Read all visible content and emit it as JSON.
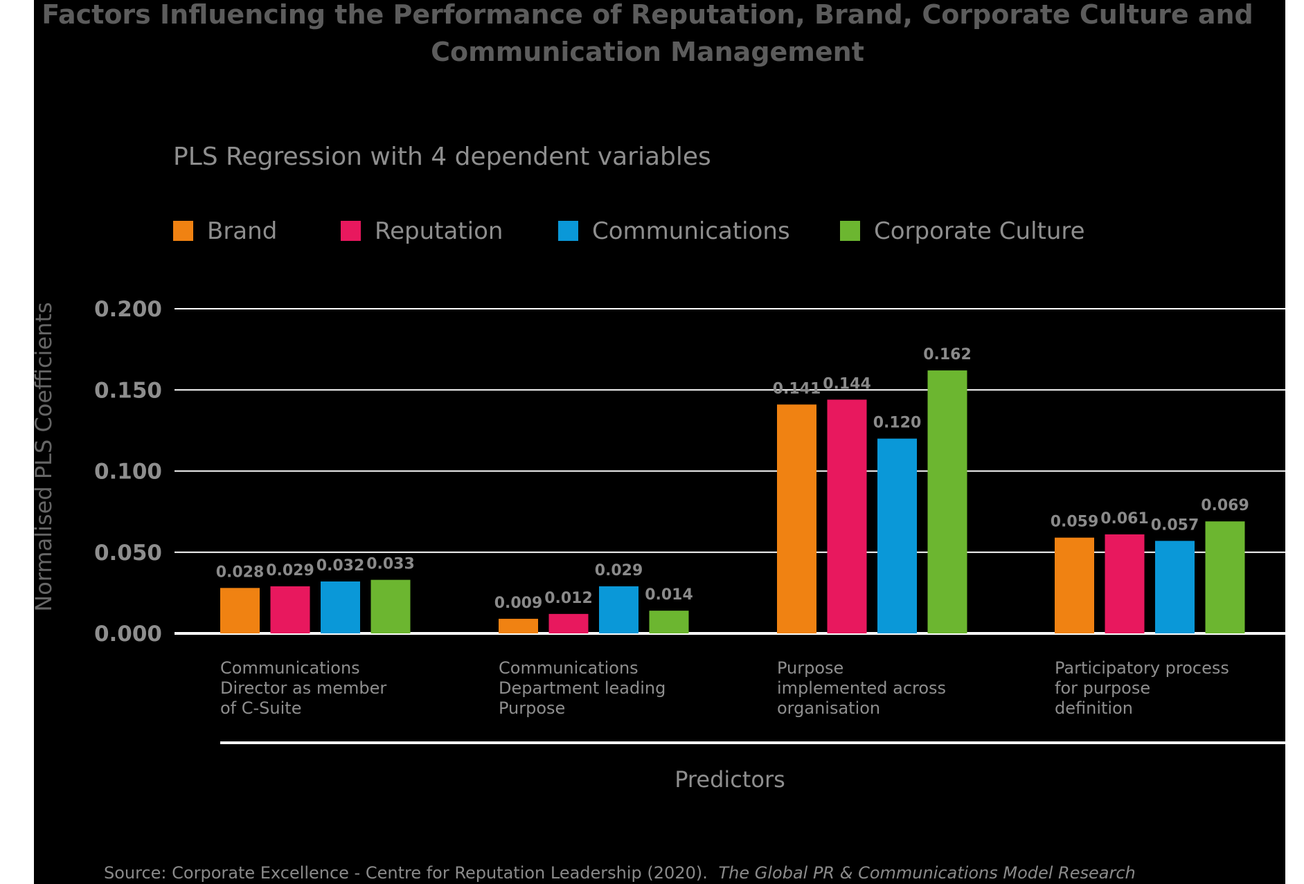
{
  "chart_data": {
    "type": "bar",
    "title": "Factors Influencing the Performance of Reputation, Brand, Corporate Culture and Communication Management",
    "title_lines": [
      "Factors Influencing the Performance of Reputation, Brand, Corporate Culture and",
      "Communication Management"
    ],
    "subtitle": "PLS Regression with 4 dependent variables",
    "ylabel": "Normalised PLS Coefficients",
    "xlabel": "Predictors",
    "ylim": [
      0,
      0.2
    ],
    "yticks": [
      "0.200",
      "0.150",
      "0.100",
      "0.050",
      "0.000"
    ],
    "grid": true,
    "legend_position": "top",
    "categories": [
      "Communications Director as member of C-Suite",
      "Communications Department leading Purpose",
      "Purpose implemented across organisation",
      "Participatory process for purpose definition"
    ],
    "category_lines": [
      [
        "Communications",
        "Director as member",
        "of C-Suite"
      ],
      [
        "Communications",
        "Department leading",
        "Purpose"
      ],
      [
        "Purpose",
        "implemented across",
        "organisation"
      ],
      [
        "Participatory process",
        "for purpose",
        "definition"
      ]
    ],
    "series": [
      {
        "name": "Brand",
        "color": "#f08212",
        "values": [
          0.028,
          0.009,
          0.141,
          0.059
        ],
        "labels": [
          "0.028",
          "0.009",
          "0.141",
          "0.059"
        ]
      },
      {
        "name": "Reputation",
        "color": "#e8185e",
        "values": [
          0.029,
          0.012,
          0.144,
          0.061
        ],
        "labels": [
          "0.029",
          "0.012",
          "0.144",
          "0.061"
        ]
      },
      {
        "name": "Communications",
        "color": "#0a98d8",
        "values": [
          0.032,
          0.029,
          0.12,
          0.057
        ],
        "labels": [
          "0.032",
          "0.029",
          "0.120",
          "0.057"
        ]
      },
      {
        "name": "Corporate Culture",
        "color": "#6cb630",
        "values": [
          0.033,
          0.014,
          0.162,
          0.069
        ],
        "labels": [
          "0.033",
          "0.014",
          "0.162",
          "0.069"
        ]
      }
    ],
    "source": "Source: Corporate Excellence - Centre for Reputation Leadership (2020).",
    "source_title": "The Global PR & Communications Model Research"
  }
}
